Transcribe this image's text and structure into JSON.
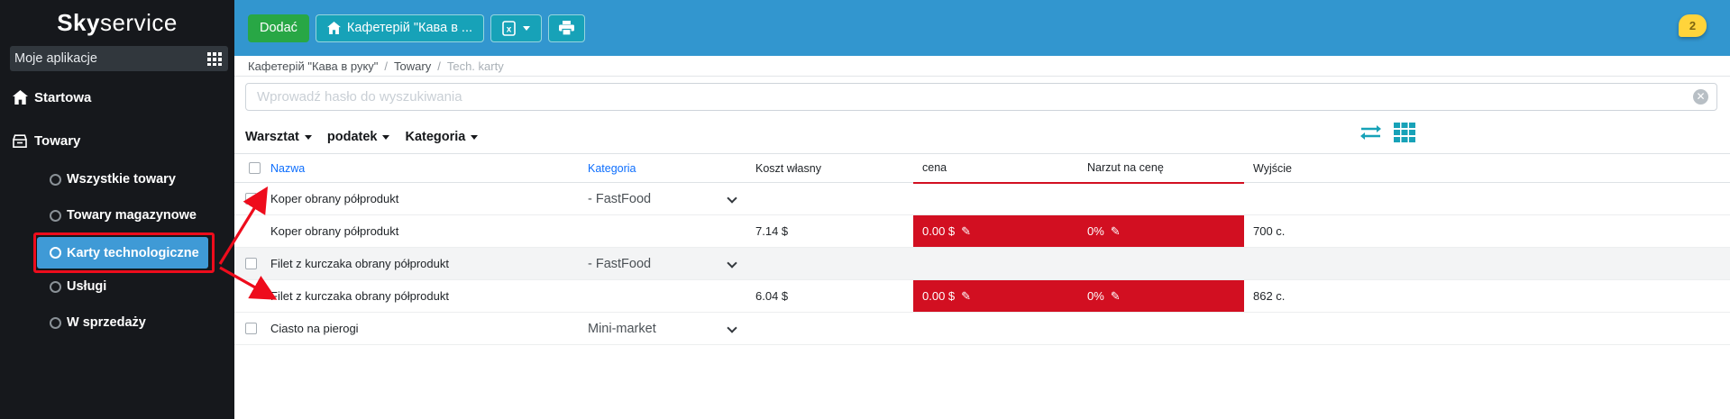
{
  "brand": {
    "logo_bold": "Sky",
    "logo_light": "service"
  },
  "sidebar": {
    "apps_header": {
      "label": "Moje aplikacje"
    },
    "items": [
      {
        "label": "Startowa",
        "icon": "home-icon"
      },
      {
        "label": "Towary",
        "icon": "goods-icon"
      }
    ],
    "subitems": [
      {
        "label": "Wszystkie towary",
        "selected": false
      },
      {
        "label": "Towary magazynowe",
        "selected": false
      },
      {
        "label": "Karty technologiczne",
        "selected": true,
        "annotated": true
      },
      {
        "label": "Usługi",
        "selected": false
      },
      {
        "label": "W sprzedaży",
        "selected": false
      }
    ]
  },
  "toolbar": {
    "add_label": "Dodać",
    "location_label": "Кафетерій \"Кава в ...",
    "notification_count": "2"
  },
  "breadcrumb": {
    "separator": "/",
    "items": [
      {
        "label": "Кафетерій \"Кава в руку\"",
        "active": false
      },
      {
        "label": "Towary",
        "active": false
      },
      {
        "label": "Tech. karty",
        "active": true
      }
    ]
  },
  "search": {
    "placeholder": "Wprowadź hasło do wyszukiwania"
  },
  "filters": [
    {
      "label": "Warsztat"
    },
    {
      "label": "podatek"
    },
    {
      "label": "Kategoria"
    }
  ],
  "table": {
    "columns": [
      "Nazwa",
      "Kategoria",
      "Koszt własny",
      "cena",
      "Narzut na cenę",
      "Wyjście"
    ],
    "rows": [
      {
        "type": "group",
        "name": "Koper obrany półprodukt",
        "category": "- FastFood"
      },
      {
        "type": "detail",
        "name": "Koper obrany półprodukt",
        "cost": "7.14 $",
        "price": "0.00 $",
        "markup": "0%",
        "output": "700 c."
      },
      {
        "type": "group",
        "name": "Filet z kurczaka obrany półprodukt",
        "category": "- FastFood",
        "shaded": true
      },
      {
        "type": "detail",
        "name": "Filet z kurczaka obrany półprodukt",
        "cost": "6.04 $",
        "price": "0.00 $",
        "markup": "0%",
        "output": "862 c."
      },
      {
        "type": "group",
        "name": "Ciasto na pierogi",
        "category": "Mini-market"
      }
    ]
  },
  "colors": {
    "topbar_blue": "#3296cf",
    "selected_item_blue": "#3f9ad6",
    "button_green": "#28a745",
    "button_teal": "#17a2b8",
    "table_alert_red": "#d20f21",
    "annotation_red": "#ee0c1c",
    "notification_yellow": "#ffd43b",
    "header_link_blue": "#0d6efd",
    "sidebar_dark": "#16181c"
  }
}
